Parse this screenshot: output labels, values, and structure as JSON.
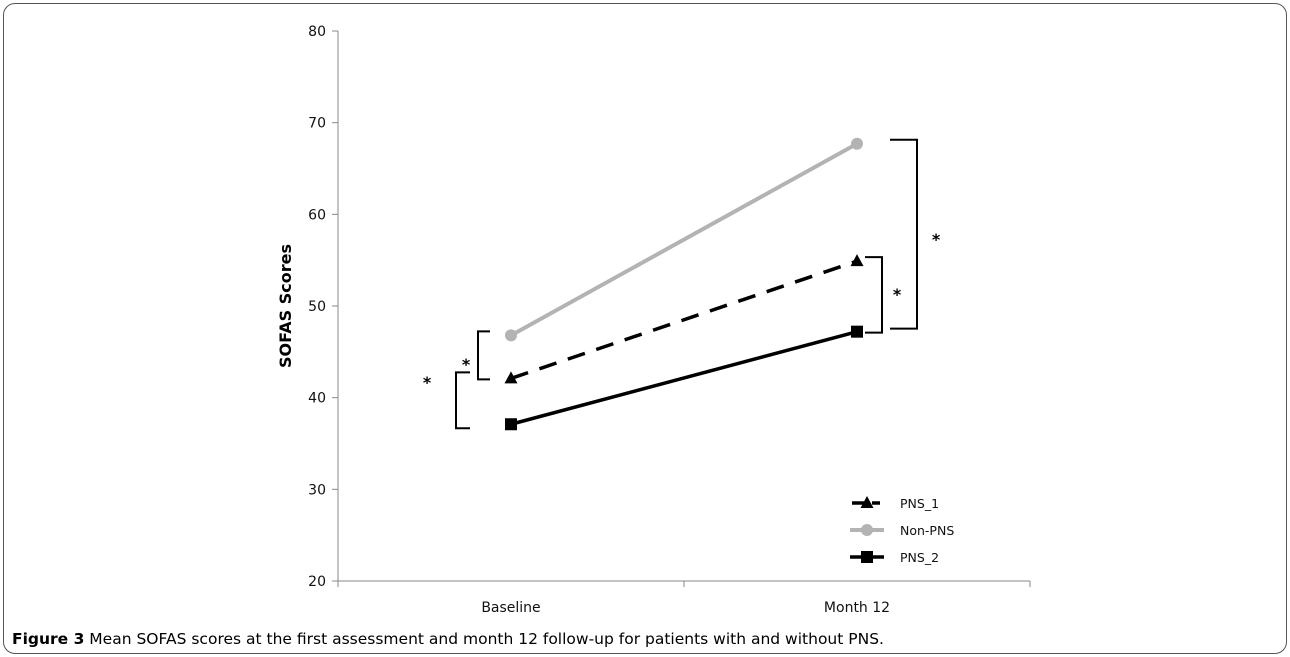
{
  "figure": {
    "caption_label": "Figure 3",
    "caption_text": " Mean SOFAS scores at the first assessment and month 12 follow-up for patients with and without PNS."
  },
  "chart_data": {
    "type": "line",
    "title": "",
    "xlabel": "",
    "ylabel": "SOFAS Scores",
    "categories": [
      "Baseline",
      "Month 12"
    ],
    "ylim": [
      20,
      80
    ],
    "yticks": [
      "20",
      "30",
      "40",
      "50",
      "60",
      "70",
      "80"
    ],
    "grid": false,
    "legend_position": "bottom-right",
    "series": [
      {
        "name": "PNS_1",
        "values": [
          42.1,
          54.9
        ],
        "color": "#000000",
        "dash": true,
        "marker": "triangle"
      },
      {
        "name": "Non-PNS",
        "values": [
          46.8,
          67.7
        ],
        "color": "#b3b3b3",
        "dash": false,
        "marker": "circle"
      },
      {
        "name": "PNS_2",
        "values": [
          37.1,
          47.2
        ],
        "color": "#000000",
        "dash": false,
        "marker": "square"
      }
    ],
    "annotations": [
      "*",
      "*",
      "*",
      "*"
    ]
  }
}
